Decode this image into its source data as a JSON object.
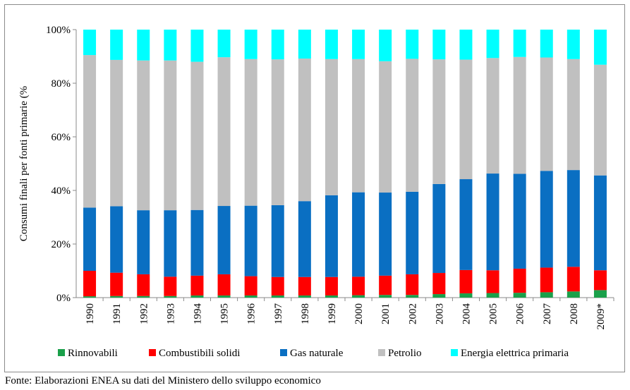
{
  "chart_data": {
    "type": "stacked-bar-100",
    "ylabel": "Consumi finali per fonti primarie (%",
    "ylim": [
      0,
      100
    ],
    "yticks": [
      "0%",
      "20%",
      "40%",
      "60%",
      "80%",
      "100%"
    ],
    "grid": false,
    "legend_position": "bottom",
    "categories": [
      "1990",
      "1991",
      "1992",
      "1993",
      "1994",
      "1995",
      "1996",
      "1997",
      "1998",
      "1999",
      "2000",
      "2001",
      "2002",
      "2003",
      "2004",
      "2005",
      "2006",
      "2007",
      "2008",
      "2009*"
    ],
    "series": [
      {
        "name": "Rinnovabili",
        "color": "#1aa04a",
        "values": [
          0.5,
          0.6,
          0.6,
          0.6,
          0.8,
          0.8,
          0.8,
          0.8,
          0.8,
          0.8,
          0.9,
          1.0,
          1.0,
          1.3,
          1.6,
          1.7,
          1.8,
          2.0,
          2.3,
          2.8
        ]
      },
      {
        "name": "Combustibili solidi",
        "color": "#ff0000",
        "values": [
          9.5,
          8.7,
          8.1,
          7.2,
          7.4,
          7.9,
          7.2,
          6.9,
          6.9,
          6.9,
          6.9,
          7.2,
          7.7,
          7.9,
          8.7,
          8.5,
          9.0,
          9.2,
          9.2,
          7.4
        ]
      },
      {
        "name": "Gas naturale",
        "color": "#0a6fc2",
        "values": [
          23.6,
          24.8,
          23.9,
          24.8,
          24.5,
          25.5,
          26.3,
          26.8,
          28.3,
          30.5,
          31.5,
          31.0,
          30.8,
          33.2,
          33.9,
          36.1,
          35.4,
          36.1,
          36.1,
          35.4
        ]
      },
      {
        "name": "Petrolio",
        "color": "#c0c0c0",
        "values": [
          56.9,
          54.6,
          55.9,
          55.9,
          55.3,
          55.5,
          54.7,
          54.4,
          53.2,
          50.8,
          49.7,
          49.0,
          49.6,
          46.5,
          44.6,
          43.1,
          43.6,
          42.3,
          41.4,
          41.3
        ]
      },
      {
        "name": "Energia elettrica primaria",
        "color": "#00ffff",
        "values": [
          9.5,
          11.3,
          11.5,
          11.5,
          12.0,
          10.3,
          11.0,
          11.1,
          10.8,
          11.0,
          11.0,
          11.8,
          10.9,
          11.1,
          11.2,
          10.6,
          10.2,
          10.4,
          11.0,
          13.1
        ]
      }
    ]
  },
  "source_note": "Fonte: Elaborazioni ENEA su dati del Ministero dello sviluppo economico"
}
